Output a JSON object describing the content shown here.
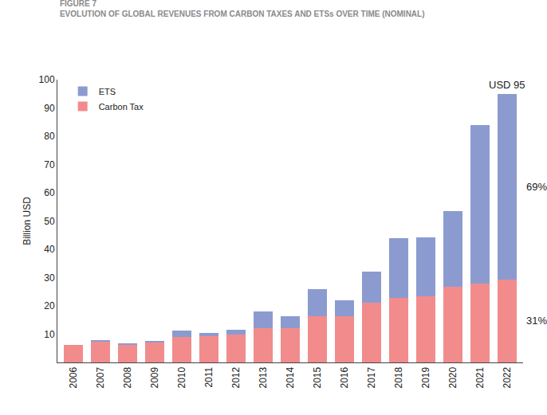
{
  "chart_data": {
    "type": "bar",
    "figure_label": "FIGURE 7",
    "title": "EVOLUTION OF GLOBAL REVENUES FROM CARBON TAXES AND ETSs OVER TIME (NOMINAL)",
    "y_label": "Billion USD",
    "categories": [
      "2006",
      "2007",
      "2008",
      "2009",
      "2010",
      "2011",
      "2012",
      "2013",
      "2014",
      "2015",
      "2016",
      "2017",
      "2018",
      "2019",
      "2020",
      "2021",
      "2022"
    ],
    "series": [
      {
        "name": "Carbon Tax",
        "color": "#f28c8c",
        "values": [
          6.3,
          7.2,
          6.2,
          7.0,
          9.0,
          9.2,
          9.8,
          12.0,
          12.0,
          16.3,
          16.3,
          21.0,
          22.7,
          23.5,
          26.7,
          28.0,
          29.3
        ]
      },
      {
        "name": "ETS",
        "color": "#8b9bd0",
        "values": [
          0,
          0.6,
          0.3,
          0.6,
          2.3,
          1.3,
          1.8,
          6.0,
          4.3,
          9.7,
          5.7,
          11.0,
          21.3,
          20.7,
          26.8,
          56.0,
          65.7
        ]
      }
    ],
    "stacked": true,
    "ylim": [
      0,
      100
    ],
    "yticks": [
      10,
      20,
      30,
      40,
      50,
      60,
      70,
      80,
      90,
      100
    ],
    "grid": false,
    "legend": "top-left",
    "annotations": [
      {
        "text": "USD 95",
        "category": "2022"
      },
      {
        "text": "69%",
        "category": "2022",
        "series": "ETS"
      },
      {
        "text": "31%",
        "category": "2022",
        "series": "Carbon Tax"
      }
    ]
  }
}
